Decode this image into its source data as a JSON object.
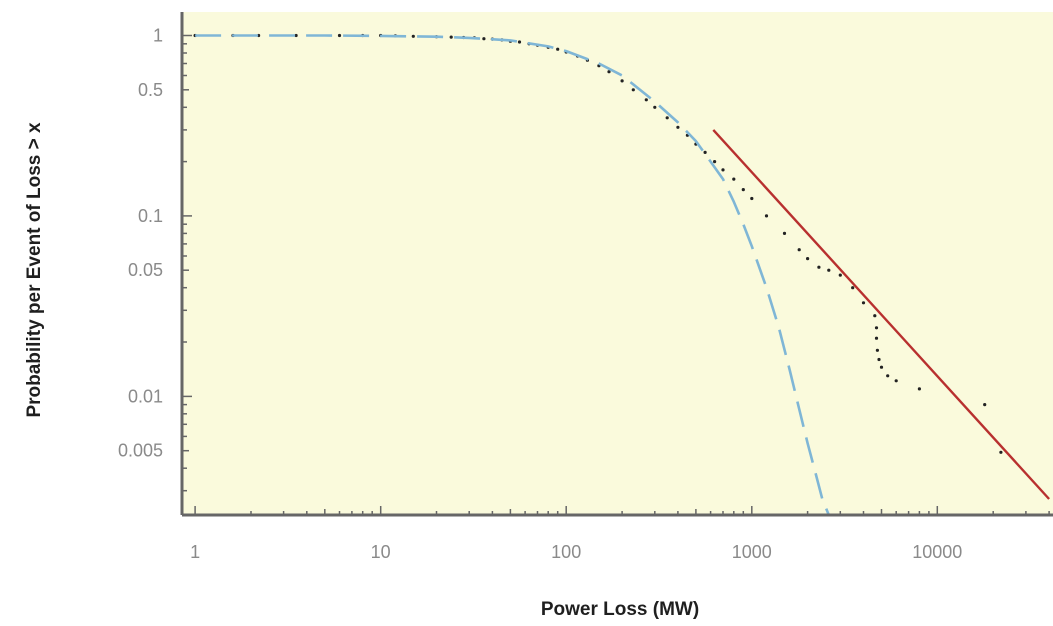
{
  "chart_data": {
    "type": "line",
    "xlabel": "Power Loss (MW)",
    "ylabel": "Probability per Event of Loss > x",
    "xscale": "log",
    "yscale": "log",
    "xlim": [
      0.85,
      42000
    ],
    "ylim": [
      0.0022,
      1.35
    ],
    "grid": false,
    "background_color": "#fafadc",
    "axis_color": "#666666",
    "tick_label_color": "#8a8a8a",
    "x_ticks": [
      {
        "value": 1,
        "label": "1"
      },
      {
        "value": 10,
        "label": "10"
      },
      {
        "value": 100,
        "label": "100"
      },
      {
        "value": 1000,
        "label": "1000"
      },
      {
        "value": 10000,
        "label": "10000"
      }
    ],
    "y_ticks": [
      {
        "value": 1,
        "label": "1"
      },
      {
        "value": 0.5,
        "label": "0.5"
      },
      {
        "value": 0.1,
        "label": "0.1"
      },
      {
        "value": 0.05,
        "label": "0.05"
      },
      {
        "value": 0.01,
        "label": "0.01"
      },
      {
        "value": 0.005,
        "label": "0.005"
      }
    ],
    "series": [
      {
        "style": "dots",
        "color": "#222222",
        "points": [
          [
            1,
            1.0
          ],
          [
            1.6,
            1.0
          ],
          [
            2.2,
            1.0
          ],
          [
            3.5,
            1.0
          ],
          [
            6,
            1.0
          ],
          [
            8,
            1.0
          ],
          [
            10,
            1.0
          ],
          [
            12,
            0.995
          ],
          [
            15,
            0.99
          ],
          [
            20,
            0.985
          ],
          [
            24,
            0.98
          ],
          [
            28,
            0.975
          ],
          [
            32,
            0.97
          ],
          [
            36,
            0.96
          ],
          [
            40,
            0.955
          ],
          [
            45,
            0.945
          ],
          [
            50,
            0.93
          ],
          [
            56,
            0.92
          ],
          [
            63,
            0.9
          ],
          [
            70,
            0.885
          ],
          [
            80,
            0.86
          ],
          [
            90,
            0.84
          ],
          [
            100,
            0.81
          ],
          [
            115,
            0.77
          ],
          [
            130,
            0.73
          ],
          [
            150,
            0.68
          ],
          [
            170,
            0.63
          ],
          [
            200,
            0.56
          ],
          [
            230,
            0.5
          ],
          [
            270,
            0.44
          ],
          [
            300,
            0.4
          ],
          [
            350,
            0.35
          ],
          [
            400,
            0.31
          ],
          [
            450,
            0.28
          ],
          [
            500,
            0.25
          ],
          [
            560,
            0.225
          ],
          [
            630,
            0.2
          ],
          [
            700,
            0.18
          ],
          [
            800,
            0.16
          ],
          [
            900,
            0.14
          ],
          [
            1000,
            0.125
          ],
          [
            1200,
            0.1
          ],
          [
            1500,
            0.08
          ],
          [
            1800,
            0.065
          ],
          [
            2000,
            0.058
          ],
          [
            2300,
            0.052
          ],
          [
            2600,
            0.05
          ],
          [
            3000,
            0.047
          ],
          [
            3500,
            0.04
          ],
          [
            4000,
            0.033
          ],
          [
            4600,
            0.028
          ],
          [
            4700,
            0.024
          ],
          [
            4700,
            0.021
          ],
          [
            4750,
            0.018
          ],
          [
            4850,
            0.016
          ],
          [
            5000,
            0.0145
          ],
          [
            5400,
            0.013
          ],
          [
            6000,
            0.0122
          ],
          [
            8000,
            0.011
          ],
          [
            18000,
            0.009
          ],
          [
            22000,
            0.0049
          ]
        ]
      },
      {
        "style": "dashed",
        "color": "#7fb6d6",
        "points": [
          [
            1,
            1.0
          ],
          [
            5,
            1.0
          ],
          [
            10,
            0.995
          ],
          [
            20,
            0.985
          ],
          [
            30,
            0.97
          ],
          [
            50,
            0.94
          ],
          [
            80,
            0.87
          ],
          [
            100,
            0.82
          ],
          [
            150,
            0.7
          ],
          [
            200,
            0.6
          ],
          [
            300,
            0.43
          ],
          [
            400,
            0.33
          ],
          [
            500,
            0.26
          ],
          [
            600,
            0.2
          ],
          [
            700,
            0.16
          ],
          [
            800,
            0.12
          ],
          [
            900,
            0.09
          ],
          [
            1000,
            0.068
          ],
          [
            1200,
            0.04
          ],
          [
            1400,
            0.024
          ],
          [
            1600,
            0.014
          ],
          [
            1800,
            0.0085
          ],
          [
            2000,
            0.0055
          ],
          [
            2200,
            0.0038
          ],
          [
            2400,
            0.0027
          ],
          [
            2600,
            0.0022
          ]
        ]
      },
      {
        "style": "solid",
        "color": "#b8302f",
        "points": [
          [
            620,
            0.3
          ],
          [
            40000,
            0.0027
          ]
        ]
      }
    ]
  }
}
